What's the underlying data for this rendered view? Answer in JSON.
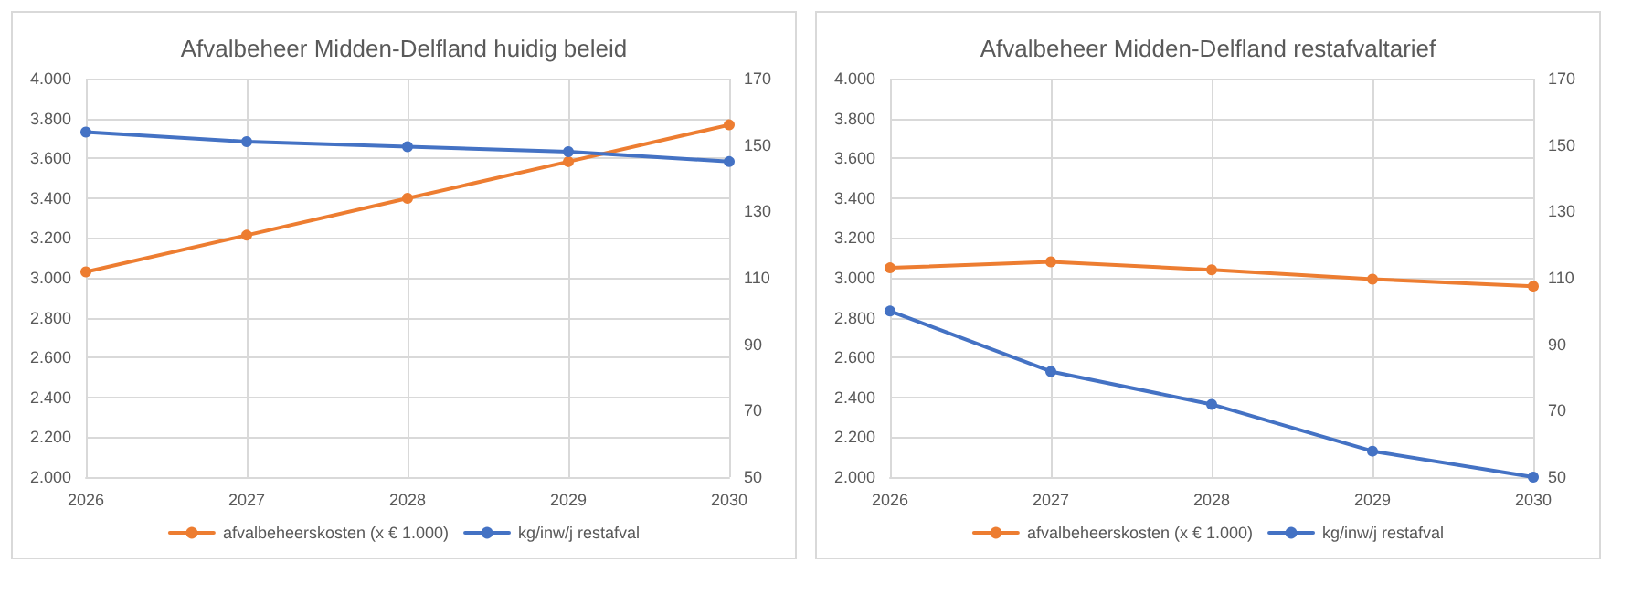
{
  "chart_data": [
    {
      "type": "line",
      "title": "Afvalbeheer Midden-Delfland huidig beleid",
      "categories": [
        "2026",
        "2027",
        "2028",
        "2029",
        "2030"
      ],
      "series": [
        {
          "name": "afvalbeheerskosten (x € 1.000)",
          "color": "#ed7d31",
          "values": [
            3030,
            3214,
            3399,
            3583,
            3768
          ]
        },
        {
          "name": "kg/inw/j restafval",
          "color": "#4472c4",
          "axis": "y2",
          "values": [
            153.9,
            151,
            149.5,
            148,
            145
          ]
        }
      ],
      "ylim": [
        2000,
        4000
      ],
      "yticks": [
        {
          "value": 2000,
          "label": "2.000"
        },
        {
          "value": 2200,
          "label": "2.200"
        },
        {
          "value": 2400,
          "label": "2.400"
        },
        {
          "value": 2600,
          "label": "2.600"
        },
        {
          "value": 2800,
          "label": "2.800"
        },
        {
          "value": 3000,
          "label": "3.000"
        },
        {
          "value": 3200,
          "label": "3.200"
        },
        {
          "value": 3400,
          "label": "3.400"
        },
        {
          "value": 3600,
          "label": "3.600"
        },
        {
          "value": 3800,
          "label": "3.800"
        },
        {
          "value": 4000,
          "label": "4.000"
        }
      ],
      "y2lim": [
        50,
        170
      ],
      "y2ticks": [
        50,
        70,
        90,
        110,
        130,
        150,
        170
      ],
      "grid": true,
      "legend": "bottom",
      "marker": "circle",
      "line_style": "solid"
    },
    {
      "type": "line",
      "title": "Afvalbeheer Midden-Delfland restafvaltarief",
      "categories": [
        "2026",
        "2027",
        "2028",
        "2029",
        "2030"
      ],
      "series": [
        {
          "name": "afvalbeheerskosten (x € 1.000)",
          "color": "#ed7d31",
          "values": [
            3050,
            3080,
            3040,
            2993,
            2958
          ]
        },
        {
          "name": "kg/inw/j restafval",
          "color": "#4472c4",
          "axis": "y2",
          "values": [
            100,
            81.8,
            71.9,
            57.8,
            50
          ]
        }
      ],
      "ylim": [
        2000,
        4000
      ],
      "yticks": [
        {
          "value": 2000,
          "label": "2.000"
        },
        {
          "value": 2200,
          "label": "2.200"
        },
        {
          "value": 2400,
          "label": "2.400"
        },
        {
          "value": 2600,
          "label": "2.600"
        },
        {
          "value": 2800,
          "label": "2.800"
        },
        {
          "value": 3000,
          "label": "3.000"
        },
        {
          "value": 3200,
          "label": "3.200"
        },
        {
          "value": 3400,
          "label": "3.400"
        },
        {
          "value": 3600,
          "label": "3.600"
        },
        {
          "value": 3800,
          "label": "3.800"
        },
        {
          "value": 4000,
          "label": "4.000"
        }
      ],
      "y2lim": [
        50,
        170
      ],
      "y2ticks": [
        50,
        70,
        90,
        110,
        130,
        150,
        170
      ],
      "grid": true,
      "legend": "bottom",
      "marker": "circle",
      "line_style": "solid"
    }
  ]
}
